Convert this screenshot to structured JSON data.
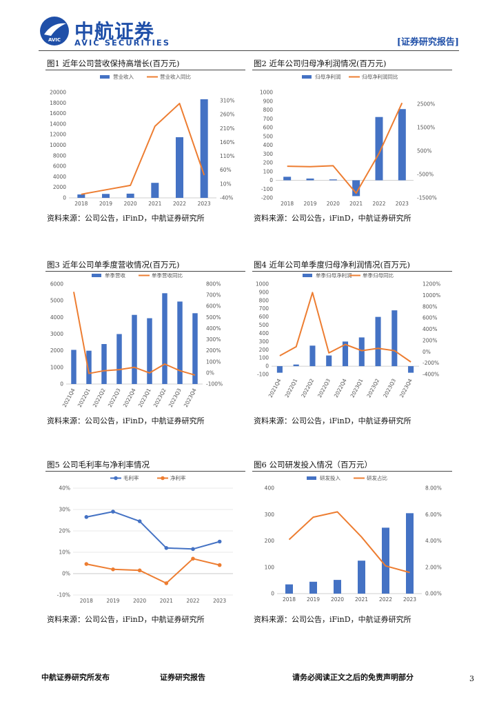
{
  "header": {
    "brand_cn": "中航证券",
    "brand_en": "AVIC SECURITIES",
    "logo_text": "AVIC",
    "report_tag": "[证券研究报告]"
  },
  "figures": [
    {
      "title": "图1 近年公司营收保持高增长(百万元)",
      "source": "资料来源：公司公告，iFinD，中航证券研究所",
      "chart_data": {
        "type": "bar+line",
        "categories": [
          "2018",
          "2019",
          "2020",
          "2021",
          "2022",
          "2023"
        ],
        "series": [
          {
            "name": "营业收入",
            "kind": "bar",
            "axis": "left",
            "values": [
              650,
              750,
              800,
              2850,
              11500,
              18700
            ]
          },
          {
            "name": "营业收入同比",
            "kind": "line",
            "axis": "right",
            "values": [
              -27,
              -11,
              5,
              218,
              300,
              42
            ]
          }
        ],
        "left_axis": {
          "min": 0,
          "max": 20000,
          "ticks": [
            0,
            2000,
            4000,
            6000,
            8000,
            10000,
            12000,
            14000,
            16000,
            18000,
            20000
          ],
          "labels": [
            "0",
            "2000",
            "4000",
            "6000",
            "8000",
            "10000",
            "12000",
            "14000",
            "16000",
            "18000",
            "20000"
          ]
        },
        "right_axis": {
          "min": -40,
          "max": 340,
          "ticks": [
            -40,
            10,
            60,
            110,
            160,
            210,
            260,
            310
          ],
          "labels": [
            "-40%",
            "10%",
            "60%",
            "110%",
            "160%",
            "210%",
            "260%",
            "310%"
          ]
        }
      }
    },
    {
      "title": "图2 近年公司归母净利润情况(百万元)",
      "source": "资料来源：公司公告，iFinD，中航证券研究所",
      "chart_data": {
        "type": "bar+line",
        "categories": [
          "2018",
          "2019",
          "2020",
          "2021",
          "2022",
          "2023"
        ],
        "series": [
          {
            "name": "归母净利润",
            "kind": "bar",
            "axis": "left",
            "values": [
              40,
              20,
              10,
              -180,
              720,
              810
            ]
          },
          {
            "name": "归母净利润同比",
            "kind": "line",
            "axis": "right",
            "values": [
              -150,
              -170,
              -130,
              -1300,
              400,
              2550
            ]
          }
        ],
        "left_axis": {
          "min": -200,
          "max": 1000,
          "ticks": [
            -200,
            -100,
            0,
            100,
            200,
            300,
            400,
            500,
            600,
            700,
            800,
            900,
            1000
          ],
          "labels": [
            "-200",
            "-100",
            "0",
            "100",
            "200",
            "300",
            "400",
            "500",
            "600",
            "700",
            "800",
            "900",
            "1000"
          ]
        },
        "right_axis": {
          "min": -1500,
          "max": 3000,
          "ticks": [
            -1500,
            -500,
            500,
            1500,
            2500
          ],
          "labels": [
            "-1500%",
            "-500%",
            "500%",
            "1500%",
            "2500%"
          ]
        }
      }
    },
    {
      "title": "图3 近年公司单季度营收情况(百万元)",
      "source": "资料来源：公司公告，iFinD，中航证券研究所",
      "chart_data": {
        "type": "bar+line",
        "categories": [
          "2021Q4",
          "2022Q1",
          "2022Q2",
          "2022Q3",
          "2022Q4",
          "2023Q1",
          "2023Q2",
          "2023Q3",
          "2023Q4"
        ],
        "series": [
          {
            "name": "单季营收",
            "kind": "bar",
            "axis": "left",
            "values": [
              2050,
              2000,
              2400,
              3000,
              4150,
              3950,
              5450,
              4950,
              4250
            ]
          },
          {
            "name": "单季营收同比",
            "kind": "line",
            "axis": "right",
            "values": [
              730,
              -5,
              20,
              30,
              50,
              0,
              80,
              20,
              -20
            ]
          }
        ],
        "left_axis": {
          "min": 0,
          "max": 6000,
          "ticks": [
            0,
            1000,
            2000,
            3000,
            4000,
            5000,
            6000
          ],
          "labels": [
            "0",
            "1000",
            "2000",
            "3000",
            "4000",
            "5000",
            "6000"
          ]
        },
        "right_axis": {
          "min": -100,
          "max": 800,
          "ticks": [
            -100,
            0,
            100,
            200,
            300,
            400,
            500,
            600,
            700,
            800
          ],
          "labels": [
            "-100%",
            "0%",
            "100%",
            "200%",
            "300%",
            "400%",
            "500%",
            "600%",
            "700%",
            "800%"
          ]
        }
      }
    },
    {
      "title": "图4 近年公司单季度归母净利润情况(百万元)",
      "source": "资料来源：公司公告，iFinD，中航证券研究所",
      "chart_data": {
        "type": "bar+line",
        "categories": [
          "2021Q4",
          "2022Q1",
          "2022Q2",
          "2022Q3",
          "2022Q4",
          "2023Q1",
          "2023Q2",
          "2023Q3",
          "2023Q4"
        ],
        "series": [
          {
            "name": "单季归母净利润",
            "kind": "bar",
            "axis": "left",
            "values": [
              -80,
              20,
              250,
              130,
              300,
              350,
              600,
              680,
              -80
            ]
          },
          {
            "name": "单季归母同比",
            "kind": "line",
            "axis": "right",
            "values": [
              -70,
              90,
              1050,
              -20,
              130,
              20,
              60,
              20,
              -180
            ]
          }
        ],
        "left_axis": {
          "min": -100,
          "max": 1000,
          "ticks": [
            -100,
            0,
            100,
            200,
            300,
            400,
            500,
            600,
            700,
            800,
            900,
            1000
          ],
          "labels": [
            "-100",
            "0",
            "100",
            "200",
            "300",
            "400",
            "500",
            "600",
            "700",
            "800",
            "900",
            "1000"
          ]
        },
        "right_axis": {
          "min": -400,
          "max": 1200,
          "ticks": [
            -400,
            -200,
            0,
            200,
            400,
            600,
            800,
            1000,
            1200
          ],
          "labels": [
            "-400%",
            "-200%",
            "0%",
            "200%",
            "400%",
            "600%",
            "800%",
            "1000%",
            "1200%"
          ]
        }
      }
    },
    {
      "title": "图5 公司毛利率与净利率情况",
      "source": "资料来源：公司公告，iFinD，中航证券研究所",
      "chart_data": {
        "type": "line",
        "categories": [
          "2018",
          "2019",
          "2020",
          "2021",
          "2022",
          "2023"
        ],
        "series": [
          {
            "name": "毛利率",
            "kind": "line",
            "axis": "left",
            "marker": true,
            "values": [
              26.5,
              29,
              24.5,
              12,
              11.5,
              15
            ]
          },
          {
            "name": "净利率",
            "kind": "line",
            "axis": "left",
            "marker": true,
            "values": [
              4.5,
              2,
              1.5,
              -4.5,
              7,
              4
            ]
          }
        ],
        "left_axis": {
          "min": -10,
          "max": 40,
          "ticks": [
            -10,
            0,
            10,
            20,
            30,
            40
          ],
          "labels": [
            "-10%",
            "0%",
            "10%",
            "20%",
            "30%",
            "40%"
          ]
        }
      }
    },
    {
      "title": "图6 公司研发投入情况（百万元）",
      "source": "资料来源：公司公告，iFinD，中航证券研究所",
      "chart_data": {
        "type": "bar+line",
        "categories": [
          "2018",
          "2019",
          "2020",
          "2021",
          "2022",
          "2023"
        ],
        "series": [
          {
            "name": "研发投入",
            "kind": "bar",
            "axis": "left",
            "values": [
              35,
              45,
              52,
              125,
              250,
              305
            ]
          },
          {
            "name": "研发占比",
            "kind": "line",
            "axis": "right",
            "values": [
              4.1,
              5.8,
              6.2,
              4.3,
              2.1,
              1.6
            ]
          }
        ],
        "left_axis": {
          "min": 0,
          "max": 400,
          "ticks": [
            0,
            100,
            200,
            300,
            400
          ],
          "labels": [
            "0",
            "100",
            "200",
            "300",
            "400"
          ]
        },
        "right_axis": {
          "min": 0,
          "max": 8,
          "ticks": [
            0,
            2,
            4,
            6,
            8
          ],
          "labels": [
            "0.00%",
            "2.00%",
            "4.00%",
            "6.00%",
            "8.00%"
          ]
        }
      }
    }
  ],
  "footer": {
    "publisher": "中航证券研究所发布",
    "report_type": "证券研究报告",
    "disclaimer": "请务必阅读正文之后的免责声明部分",
    "page_number": "3"
  },
  "colors": {
    "brand": "#1f4fa8",
    "bar": "#4472c4",
    "line": "#ed7d31"
  }
}
